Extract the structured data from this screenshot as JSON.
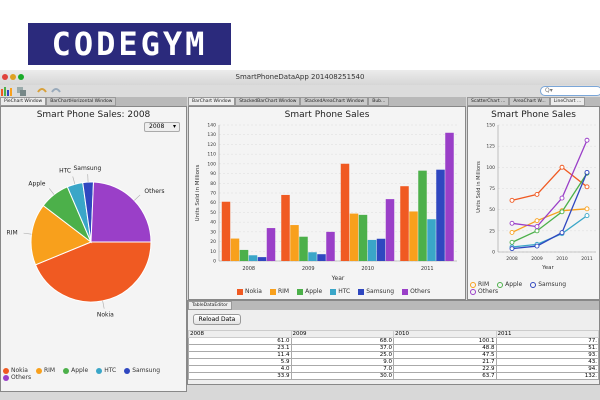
{
  "logo": {
    "text": "CODEGYM",
    "bg": "#2b2a7c",
    "accent": "#ff5a1f"
  },
  "window": {
    "title": "SmartPhoneDataApp 201408251540",
    "search_placeholder": "Q▾"
  },
  "toolbar": {
    "icons": [
      "chart-icon",
      "copy-icon",
      "undo-icon",
      "redo-icon"
    ]
  },
  "tabs": {
    "left": [
      "PieChart Window",
      "BarChartHorizontal Window"
    ],
    "middle": [
      "BarChart Window",
      "StackedBarChart Window",
      "StackedAreaChart Window",
      "Bub..."
    ],
    "right": [
      "ScatterChart ...",
      "AreaChart W...",
      "LineChart ..."
    ]
  },
  "colors": {
    "Nokia": "#f05a22",
    "RIM": "#f8a01c",
    "Apple": "#4cb04a",
    "HTC": "#3aa6c8",
    "Samsung": "#2f47c0",
    "Others": "#9a3fc8"
  },
  "pie": {
    "title": "Smart Phone Sales: 2008",
    "year_select": "2008"
  },
  "bar": {
    "title": "Smart Phone Sales"
  },
  "line": {
    "title": "Smart Phone Sales",
    "legend": [
      "RIM",
      "Apple",
      "Samsung",
      "Others"
    ]
  },
  "table_editor": {
    "tab": "TableDataEditor",
    "reload_label": "Reload Data",
    "headers": [
      "2008",
      "2009",
      "2010",
      "2011"
    ],
    "rows": [
      [
        "61.0",
        "68.0",
        "100.1",
        "77."
      ],
      [
        "23.1",
        "37.0",
        "48.8",
        "51."
      ],
      [
        "11.4",
        "25.0",
        "47.5",
        "93."
      ],
      [
        "5.9",
        "9.0",
        "21.7",
        "43."
      ],
      [
        "4.0",
        "7.0",
        "22.9",
        "94."
      ],
      [
        "33.9",
        "30.0",
        "63.7",
        "132."
      ]
    ]
  },
  "chart_data": [
    {
      "type": "pie",
      "title": "Smart Phone Sales: 2008",
      "labels": [
        "Nokia",
        "RIM",
        "Apple",
        "HTC",
        "Samsung",
        "Others"
      ],
      "values": [
        61.0,
        23.1,
        11.4,
        5.9,
        4.0,
        33.9
      ],
      "legend": "bottom"
    },
    {
      "type": "bar",
      "title": "Smart Phone Sales",
      "xlabel": "Year",
      "ylabel": "Units Sold in Millions",
      "categories": [
        "2008",
        "2009",
        "2010",
        "2011"
      ],
      "ylim": [
        0,
        140
      ],
      "yticks": [
        0,
        10,
        20,
        30,
        40,
        50,
        60,
        70,
        80,
        90,
        100,
        110,
        120,
        130,
        140
      ],
      "grid": true,
      "legend": "bottom",
      "series": [
        {
          "name": "Nokia",
          "values": [
            61.0,
            68.0,
            100.1,
            77
          ]
        },
        {
          "name": "RIM",
          "values": [
            23.1,
            37.0,
            48.8,
            51
          ]
        },
        {
          "name": "Apple",
          "values": [
            11.4,
            25.0,
            47.5,
            93
          ]
        },
        {
          "name": "HTC",
          "values": [
            5.9,
            9.0,
            21.7,
            43
          ]
        },
        {
          "name": "Samsung",
          "values": [
            4.0,
            7.0,
            22.9,
            94
          ]
        },
        {
          "name": "Others",
          "values": [
            33.9,
            30.0,
            63.7,
            132
          ]
        }
      ]
    },
    {
      "type": "line",
      "title": "Smart Phone Sales",
      "xlabel": "Year",
      "ylabel": "Units Sold in Millions",
      "categories": [
        "2008",
        "2009",
        "2010",
        "2011"
      ],
      "ylim": [
        0,
        150
      ],
      "yticks": [
        0,
        25,
        50,
        75,
        100,
        125,
        150
      ],
      "grid": true,
      "legend": "bottom",
      "series": [
        {
          "name": "Nokia",
          "values": [
            61.0,
            68.0,
            100.1,
            77
          ]
        },
        {
          "name": "RIM",
          "values": [
            23.1,
            37.0,
            48.8,
            51
          ]
        },
        {
          "name": "Apple",
          "values": [
            11.4,
            25.0,
            47.5,
            93
          ]
        },
        {
          "name": "HTC",
          "values": [
            5.9,
            9.0,
            21.7,
            43
          ]
        },
        {
          "name": "Samsung",
          "values": [
            4.0,
            7.0,
            22.9,
            94
          ]
        },
        {
          "name": "Others",
          "values": [
            33.9,
            30.0,
            63.7,
            132
          ]
        }
      ]
    }
  ]
}
